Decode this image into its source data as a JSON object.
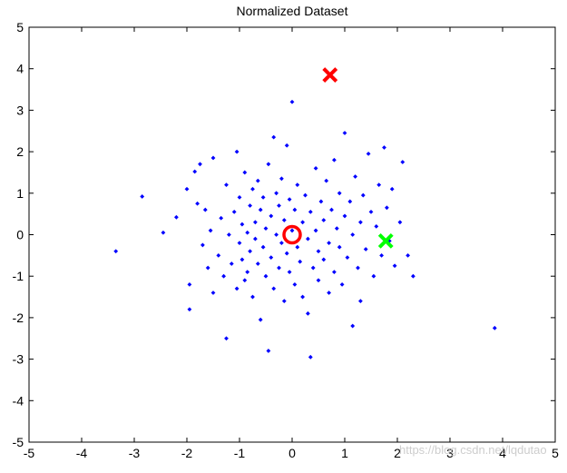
{
  "chart_data": {
    "type": "scatter",
    "title": "Normalized Dataset",
    "xlabel": "",
    "ylabel": "",
    "xlim": [
      -5,
      5
    ],
    "ylim": [
      -5,
      5
    ],
    "x_ticks": [
      -5,
      -4,
      -3,
      -2,
      -1,
      0,
      1,
      2,
      3,
      4,
      5
    ],
    "y_ticks": [
      -5,
      -4,
      -3,
      -2,
      -1,
      0,
      1,
      2,
      3,
      4,
      5
    ],
    "grid": false,
    "series": [
      {
        "marker": "dot",
        "color": "#0000ff",
        "points": [
          [
            -3.35,
            -0.4
          ],
          [
            -2.85,
            0.92
          ],
          [
            -2.45,
            0.05
          ],
          [
            -2.2,
            0.42
          ],
          [
            -2.0,
            1.1
          ],
          [
            -1.95,
            -1.2
          ],
          [
            -1.95,
            -1.8
          ],
          [
            -1.85,
            1.52
          ],
          [
            -1.8,
            0.75
          ],
          [
            -1.75,
            1.7
          ],
          [
            -1.7,
            -0.25
          ],
          [
            -1.65,
            0.6
          ],
          [
            -1.6,
            -0.8
          ],
          [
            -1.55,
            0.1
          ],
          [
            -1.5,
            -1.4
          ],
          [
            -1.5,
            1.85
          ],
          [
            -1.4,
            -0.5
          ],
          [
            -1.35,
            0.4
          ],
          [
            -1.3,
            -1.0
          ],
          [
            -1.25,
            1.2
          ],
          [
            -1.25,
            -2.5
          ],
          [
            -1.2,
            0.0
          ],
          [
            -1.15,
            -0.7
          ],
          [
            -1.1,
            0.55
          ],
          [
            -1.05,
            -1.3
          ],
          [
            -1.05,
            2.0
          ],
          [
            -1.0,
            -0.2
          ],
          [
            -1.0,
            0.9
          ],
          [
            -0.95,
            -0.6
          ],
          [
            -0.95,
            0.25
          ],
          [
            -0.9,
            -1.1
          ],
          [
            -0.9,
            1.5
          ],
          [
            -0.85,
            0.05
          ],
          [
            -0.85,
            -0.9
          ],
          [
            -0.8,
            0.7
          ],
          [
            -0.8,
            -0.4
          ],
          [
            -0.75,
            1.1
          ],
          [
            -0.75,
            -1.5
          ],
          [
            -0.7,
            0.3
          ],
          [
            -0.7,
            -0.1
          ],
          [
            -0.65,
            -0.7
          ],
          [
            -0.65,
            1.3
          ],
          [
            -0.6,
            -2.05
          ],
          [
            -0.6,
            0.6
          ],
          [
            -0.55,
            -0.3
          ],
          [
            -0.55,
            0.9
          ],
          [
            -0.5,
            -1.0
          ],
          [
            -0.5,
            0.15
          ],
          [
            -0.45,
            -2.8
          ],
          [
            -0.45,
            1.7
          ],
          [
            -0.4,
            -0.55
          ],
          [
            -0.4,
            0.45
          ],
          [
            -0.35,
            2.35
          ],
          [
            -0.35,
            -1.3
          ],
          [
            -0.3,
            0.0
          ],
          [
            -0.3,
            1.0
          ],
          [
            -0.25,
            -0.8
          ],
          [
            -0.25,
            0.7
          ],
          [
            -0.2,
            -0.2
          ],
          [
            -0.2,
            1.35
          ],
          [
            -0.15,
            -1.6
          ],
          [
            -0.15,
            0.35
          ],
          [
            -0.1,
            2.15
          ],
          [
            -0.1,
            -0.45
          ],
          [
            -0.05,
            0.85
          ],
          [
            -0.05,
            -0.9
          ],
          [
            0.0,
            0.1
          ],
          [
            0.0,
            3.2
          ],
          [
            0.05,
            -1.2
          ],
          [
            0.05,
            0.6
          ],
          [
            0.1,
            -0.3
          ],
          [
            0.1,
            1.2
          ],
          [
            0.15,
            -0.65
          ],
          [
            0.2,
            0.3
          ],
          [
            0.2,
            -1.5
          ],
          [
            0.25,
            0.95
          ],
          [
            0.3,
            -0.1
          ],
          [
            0.3,
            -1.9
          ],
          [
            0.35,
            0.55
          ],
          [
            0.35,
            -2.95
          ],
          [
            0.4,
            -0.8
          ],
          [
            0.45,
            1.6
          ],
          [
            0.45,
            0.1
          ],
          [
            0.5,
            -0.4
          ],
          [
            0.5,
            -1.1
          ],
          [
            0.55,
            0.8
          ],
          [
            0.6,
            0.35
          ],
          [
            0.6,
            -0.6
          ],
          [
            0.65,
            1.3
          ],
          [
            0.7,
            -0.2
          ],
          [
            0.7,
            -1.4
          ],
          [
            0.75,
            0.6
          ],
          [
            0.8,
            1.8
          ],
          [
            0.8,
            -0.9
          ],
          [
            0.85,
            0.15
          ],
          [
            0.9,
            -0.3
          ],
          [
            0.9,
            1.0
          ],
          [
            0.95,
            -1.2
          ],
          [
            1.0,
            0.45
          ],
          [
            1.0,
            2.45
          ],
          [
            1.05,
            -0.55
          ],
          [
            1.1,
            0.8
          ],
          [
            1.15,
            -2.2
          ],
          [
            1.15,
            0.0
          ],
          [
            1.2,
            1.4
          ],
          [
            1.25,
            -0.8
          ],
          [
            1.3,
            0.3
          ],
          [
            1.3,
            -1.6
          ],
          [
            1.35,
            0.95
          ],
          [
            1.4,
            -0.35
          ],
          [
            1.45,
            1.95
          ],
          [
            1.5,
            0.55
          ],
          [
            1.55,
            -1.0
          ],
          [
            1.6,
            0.2
          ],
          [
            1.65,
            1.2
          ],
          [
            1.7,
            -0.5
          ],
          [
            1.75,
            2.1
          ],
          [
            1.8,
            0.65
          ],
          [
            1.85,
            -0.15
          ],
          [
            1.9,
            1.1
          ],
          [
            1.95,
            -0.75
          ],
          [
            2.05,
            0.3
          ],
          [
            2.1,
            1.75
          ],
          [
            2.2,
            -0.5
          ],
          [
            2.3,
            -1.0
          ],
          [
            3.85,
            -2.25
          ]
        ]
      },
      {
        "marker": "circle",
        "color": "#ff0000",
        "points": [
          [
            0.0,
            0.0
          ]
        ]
      },
      {
        "marker": "x",
        "color": "#ff0000",
        "points": [
          [
            0.72,
            3.85
          ]
        ]
      },
      {
        "marker": "x",
        "color": "#00ff00",
        "points": [
          [
            1.78,
            -0.15
          ]
        ]
      }
    ]
  },
  "watermark": "https://blog.csdn.net/lqdutao"
}
